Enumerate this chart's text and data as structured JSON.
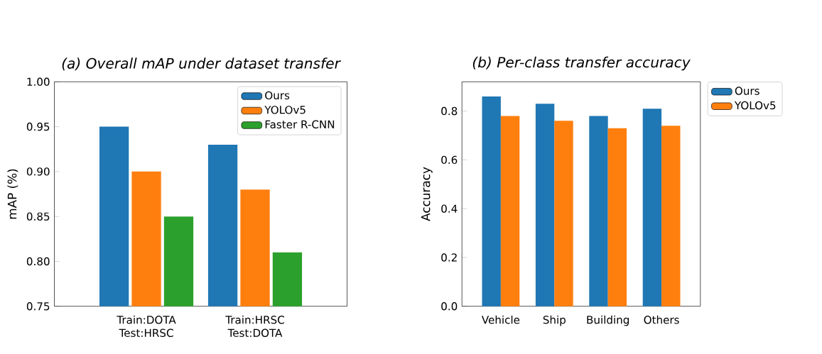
{
  "chart_data": [
    {
      "type": "bar",
      "title": "(a) Overall mAP under dataset transfer",
      "ylabel": "mAP (%)",
      "categories": [
        "Train:DOTA Test:HRSC",
        "Train:HRSC Test:DOTA"
      ],
      "series": [
        {
          "name": "Ours",
          "color": "#1f77b4",
          "values": [
            0.95,
            0.93
          ]
        },
        {
          "name": "YOLOv5",
          "color": "#ff7f0e",
          "values": [
            0.9,
            0.88
          ]
        },
        {
          "name": "Faster R-CNN",
          "color": "#2ca02c",
          "values": [
            0.85,
            0.81
          ]
        }
      ],
      "ylim": [
        0.75,
        1.0
      ],
      "yticks": [
        0.75,
        {
          "value": 0.8,
          "label": "0.80"
        },
        0.85,
        {
          "value": 0.9,
          "label": "0.90"
        },
        0.95,
        {
          "value": 1.0,
          "label": "1.00"
        }
      ],
      "legend": "top right"
    },
    {
      "type": "bar",
      "title": "(b) Per-class transfer accuracy",
      "ylabel": "Accuracy",
      "categories": [
        "Vehicle",
        "Ship",
        "Building",
        "Others"
      ],
      "series": [
        {
          "name": "Ours",
          "color": "#1f77b4",
          "values": [
            0.86,
            0.83,
            0.78,
            0.81
          ]
        },
        {
          "name": "YOLOv5",
          "color": "#ff7f0e",
          "values": [
            0.78,
            0.76,
            0.73,
            0.74
          ]
        }
      ],
      "ylim": [
        0,
        0.92
      ],
      "yticks": [
        {
          "value": 0,
          "label": "0.0"
        },
        0.2,
        0.4,
        0.6,
        0.8
      ],
      "legend": "right"
    }
  ]
}
